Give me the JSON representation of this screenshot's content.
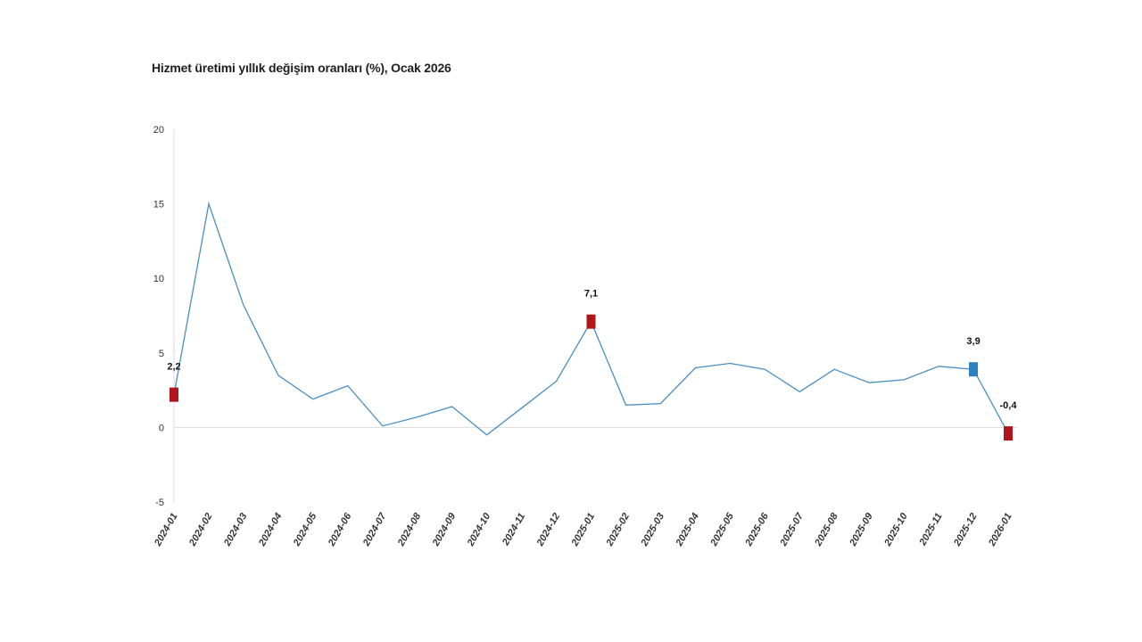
{
  "title": "Hizmet üretimi yıllık değişim oranları (%), Ocak 2026",
  "colors": {
    "line": "#4a8ec2",
    "marker_highlight": "#b0151b",
    "marker_current": "#2e7fc0",
    "axis": "#dddddd"
  },
  "chart_data": {
    "type": "line",
    "title": "Hizmet üretimi yıllık değişim oranları (%), Ocak 2026",
    "xlabel": "",
    "ylabel": "",
    "ylim": [
      -5,
      20
    ],
    "yticks": [
      "-5",
      "0",
      "5",
      "10",
      "15",
      "20"
    ],
    "grid": false,
    "categories": [
      "2024-01",
      "2024-02",
      "2024-03",
      "2024-04",
      "2024-05",
      "2024-06",
      "2024-07",
      "2024-08",
      "2024-09",
      "2024-10",
      "2024-11",
      "2024-12",
      "2025-01",
      "2025-02",
      "2025-03",
      "2025-04",
      "2025-05",
      "2025-06",
      "2025-07",
      "2025-08",
      "2025-09",
      "2025-10",
      "2025-11",
      "2025-12",
      "2026-01"
    ],
    "series": [
      {
        "values": [
          2.2,
          15.0,
          8.2,
          3.5,
          1.9,
          2.8,
          0.1,
          0.7,
          1.4,
          -0.5,
          1.3,
          3.1,
          7.1,
          1.5,
          1.6,
          4.0,
          4.3,
          3.9,
          2.4,
          3.9,
          3.0,
          3.2,
          4.1,
          3.9,
          -0.4
        ]
      }
    ],
    "data_labels": [
      {
        "index": 0,
        "text": "2,2",
        "marker": "highlight"
      },
      {
        "index": 12,
        "text": "7,1",
        "marker": "highlight"
      },
      {
        "index": 23,
        "text": "3,9",
        "marker": "current"
      },
      {
        "index": 24,
        "text": "-0,4",
        "marker": "highlight"
      }
    ]
  }
}
